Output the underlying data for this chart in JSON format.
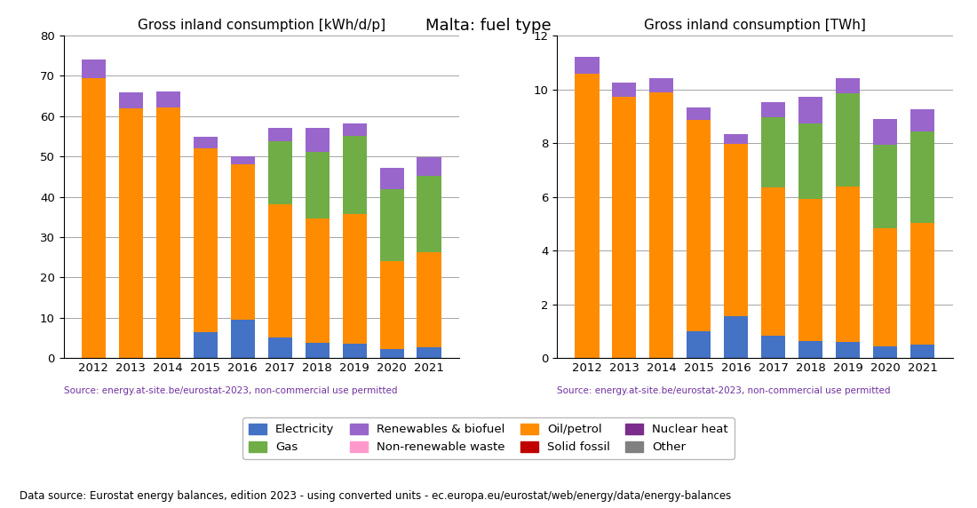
{
  "title": "Malta: fuel type",
  "years": [
    2012,
    2013,
    2014,
    2015,
    2016,
    2017,
    2018,
    2019,
    2020,
    2021
  ],
  "left_title": "Gross inland consumption [kWh/d/p]",
  "right_title": "Gross inland consumption [TWh]",
  "source_text": "Source: energy.at-site.be/eurostat-2023, non-commercial use permitted",
  "footer_text": "Data source: Eurostat energy balances, edition 2023 - using converted units - ec.europa.eu/eurostat/web/energy/data/energy-balances",
  "fuel_order": [
    "Electricity",
    "Oil/petrol",
    "Solid fossil",
    "Gas",
    "Nuclear heat",
    "Renewables & biofuel",
    "Non-renewable waste",
    "Other"
  ],
  "colors": {
    "Electricity": "#4472c4",
    "Oil/petrol": "#ff8c00",
    "Solid fossil": "#c00000",
    "Gas": "#70ad47",
    "Nuclear heat": "#7b2d8b",
    "Renewables & biofuel": "#9966cc",
    "Non-renewable waste": "#ff99cc",
    "Other": "#808080"
  },
  "left_data": {
    "Electricity": [
      0.0,
      0.0,
      0.0,
      6.5,
      9.5,
      5.2,
      3.8,
      3.5,
      2.3,
      2.8
    ],
    "Oil/petrol": [
      69.5,
      62.0,
      62.2,
      45.5,
      38.5,
      33.0,
      30.8,
      32.2,
      21.8,
      23.5
    ],
    "Solid fossil": [
      0.0,
      0.0,
      0.0,
      0.0,
      0.0,
      0.0,
      0.0,
      0.0,
      0.0,
      0.0
    ],
    "Gas": [
      0.0,
      0.0,
      0.0,
      0.0,
      0.0,
      15.5,
      16.5,
      19.5,
      17.8,
      18.8
    ],
    "Nuclear heat": [
      0.0,
      0.0,
      0.0,
      0.0,
      0.0,
      0.0,
      0.0,
      0.0,
      0.0,
      0.0
    ],
    "Renewables & biofuel": [
      4.5,
      4.0,
      4.0,
      3.0,
      2.0,
      3.3,
      5.9,
      3.0,
      5.4,
      4.7
    ],
    "Non-renewable waste": [
      0.0,
      0.0,
      0.0,
      0.0,
      0.0,
      0.0,
      0.0,
      0.0,
      0.0,
      0.0
    ],
    "Other": [
      0.0,
      0.0,
      0.0,
      0.0,
      0.0,
      0.0,
      0.0,
      0.0,
      0.0,
      0.0
    ]
  },
  "right_data": {
    "Electricity": [
      0.0,
      0.0,
      0.0,
      1.0,
      1.55,
      0.82,
      0.62,
      0.61,
      0.45,
      0.52
    ],
    "Oil/petrol": [
      10.57,
      9.72,
      9.88,
      7.85,
      6.42,
      5.52,
      5.3,
      5.78,
      4.38,
      4.5
    ],
    "Solid fossil": [
      0.0,
      0.0,
      0.0,
      0.0,
      0.0,
      0.0,
      0.0,
      0.0,
      0.0,
      0.0
    ],
    "Gas": [
      0.0,
      0.0,
      0.0,
      0.0,
      0.0,
      2.62,
      2.8,
      3.48,
      3.1,
      3.4
    ],
    "Nuclear heat": [
      0.0,
      0.0,
      0.0,
      0.0,
      0.0,
      0.0,
      0.0,
      0.0,
      0.0,
      0.0
    ],
    "Renewables & biofuel": [
      0.65,
      0.52,
      0.52,
      0.47,
      0.35,
      0.55,
      0.99,
      0.55,
      0.96,
      0.85
    ],
    "Non-renewable waste": [
      0.0,
      0.0,
      0.0,
      0.0,
      0.0,
      0.0,
      0.0,
      0.0,
      0.0,
      0.0
    ],
    "Other": [
      0.0,
      0.0,
      0.0,
      0.0,
      0.0,
      0.0,
      0.0,
      0.0,
      0.0,
      0.0
    ]
  },
  "left_ylim": [
    0,
    80
  ],
  "right_ylim": [
    0,
    12
  ],
  "left_yticks": [
    0,
    10,
    20,
    30,
    40,
    50,
    60,
    70,
    80
  ],
  "right_yticks": [
    0,
    2,
    4,
    6,
    8,
    10,
    12
  ],
  "legend_row1": [
    "Electricity",
    "Gas",
    "Renewables & biofuel",
    "Non-renewable waste"
  ],
  "legend_row2": [
    "Oil/petrol",
    "Solid fossil",
    "Nuclear heat",
    "Other"
  ]
}
